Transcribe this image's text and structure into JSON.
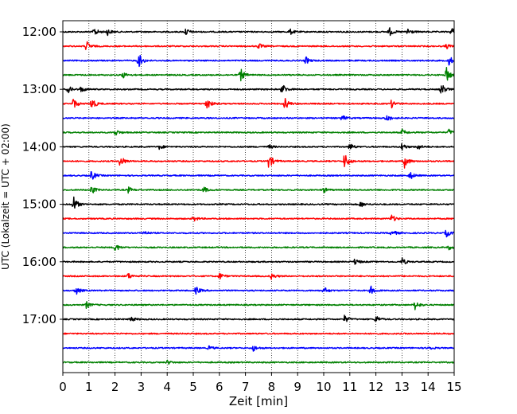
{
  "chart_data": {
    "type": "line",
    "title": "",
    "xlabel": "Zeit  [min]",
    "ylabel": "UTC (Lokalzeit = UTC + 02:00)",
    "xlim": [
      0,
      15
    ],
    "x_ticks": [
      0,
      1,
      2,
      3,
      4,
      5,
      6,
      7,
      8,
      9,
      10,
      11,
      12,
      13,
      14,
      15
    ],
    "x_tick_labels": [
      "0",
      "1",
      "2",
      "3",
      "4",
      "5",
      "6",
      "7",
      "8",
      "9",
      "10",
      "11",
      "12",
      "13",
      "14",
      "15"
    ],
    "y_tick_labels": [
      "12:00",
      "13:00",
      "14:00",
      "15:00",
      "16:00",
      "17:00"
    ],
    "y_tick_rows": [
      0,
      4,
      8,
      12,
      16,
      20
    ],
    "grid": "vertical dotted",
    "trace_colors": [
      "#000000",
      "#ff0000",
      "#0000ff",
      "#008000"
    ],
    "series": [
      {
        "start": "12:00",
        "events": [
          [
            1.2,
            0.5
          ],
          [
            1.7,
            0.4
          ],
          [
            4.7,
            0.45
          ],
          [
            8.7,
            0.35
          ],
          [
            12.5,
            0.55
          ],
          [
            13.2,
            0.5
          ],
          [
            14.9,
            0.55
          ]
        ]
      },
      {
        "start": "12:15",
        "events": [
          [
            0.9,
            0.6
          ],
          [
            7.5,
            0.35
          ],
          [
            14.7,
            0.3
          ]
        ]
      },
      {
        "start": "12:30",
        "events": [
          [
            2.9,
            0.9
          ],
          [
            9.3,
            0.45
          ],
          [
            14.8,
            0.6
          ]
        ]
      },
      {
        "start": "12:45",
        "events": [
          [
            2.3,
            0.35
          ],
          [
            6.8,
            0.8
          ],
          [
            14.7,
            0.9
          ]
        ]
      },
      {
        "start": "13:00",
        "events": [
          [
            0.2,
            0.4
          ],
          [
            0.7,
            0.35
          ],
          [
            8.4,
            0.7
          ],
          [
            14.5,
            0.7
          ]
        ]
      },
      {
        "start": "13:15",
        "events": [
          [
            0.4,
            0.6
          ],
          [
            1.1,
            0.8
          ],
          [
            5.5,
            0.85
          ],
          [
            8.5,
            0.75
          ],
          [
            12.6,
            0.45
          ]
        ]
      },
      {
        "start": "13:30",
        "events": [
          [
            10.7,
            0.35
          ],
          [
            12.4,
            0.5
          ]
        ]
      },
      {
        "start": "13:45",
        "events": [
          [
            2.0,
            0.4
          ],
          [
            13.0,
            0.35
          ],
          [
            14.8,
            0.35
          ]
        ]
      },
      {
        "start": "14:00",
        "events": [
          [
            3.7,
            0.3
          ],
          [
            7.9,
            0.25
          ],
          [
            11.0,
            0.45
          ],
          [
            13.0,
            0.45
          ],
          [
            13.6,
            0.35
          ]
        ]
      },
      {
        "start": "14:15",
        "events": [
          [
            2.2,
            0.7
          ],
          [
            7.9,
            0.9
          ],
          [
            10.8,
            1.0
          ],
          [
            13.1,
            0.75
          ]
        ]
      },
      {
        "start": "14:30",
        "events": [
          [
            1.1,
            0.6
          ],
          [
            13.3,
            0.5
          ]
        ]
      },
      {
        "start": "14:45",
        "events": [
          [
            1.1,
            0.5
          ],
          [
            2.5,
            0.35
          ],
          [
            5.4,
            0.35
          ],
          [
            10.0,
            0.3
          ]
        ]
      },
      {
        "start": "15:00",
        "events": [
          [
            0.4,
            1.0
          ],
          [
            11.4,
            0.35
          ]
        ]
      },
      {
        "start": "15:15",
        "events": [
          [
            5.0,
            0.35
          ],
          [
            12.6,
            0.45
          ]
        ]
      },
      {
        "start": "15:30",
        "events": [
          [
            3.1,
            0.3
          ],
          [
            12.6,
            0.45
          ],
          [
            14.7,
            0.45
          ]
        ]
      },
      {
        "start": "15:45",
        "events": [
          [
            2.0,
            0.5
          ],
          [
            14.8,
            0.25
          ]
        ]
      },
      {
        "start": "16:00",
        "events": [
          [
            11.2,
            0.4
          ],
          [
            13.0,
            0.45
          ]
        ]
      },
      {
        "start": "16:15",
        "events": [
          [
            2.5,
            0.35
          ],
          [
            6.0,
            0.4
          ],
          [
            8.0,
            0.35
          ]
        ]
      },
      {
        "start": "16:30",
        "events": [
          [
            0.5,
            0.5
          ],
          [
            5.1,
            0.5
          ],
          [
            10.0,
            0.45
          ],
          [
            11.8,
            0.5
          ]
        ]
      },
      {
        "start": "16:45",
        "events": [
          [
            0.9,
            0.4
          ],
          [
            13.5,
            0.55
          ]
        ]
      },
      {
        "start": "17:00",
        "events": [
          [
            2.6,
            0.3
          ],
          [
            10.8,
            0.45
          ],
          [
            12.0,
            0.45
          ],
          [
            15.0,
            0.25
          ]
        ]
      },
      {
        "start": "17:15",
        "events": []
      },
      {
        "start": "17:30",
        "events": [
          [
            5.6,
            0.25
          ],
          [
            7.3,
            0.35
          ],
          [
            14.0,
            0.3
          ]
        ]
      },
      {
        "start": "17:45",
        "events": [
          [
            4.0,
            0.25
          ]
        ]
      }
    ]
  }
}
